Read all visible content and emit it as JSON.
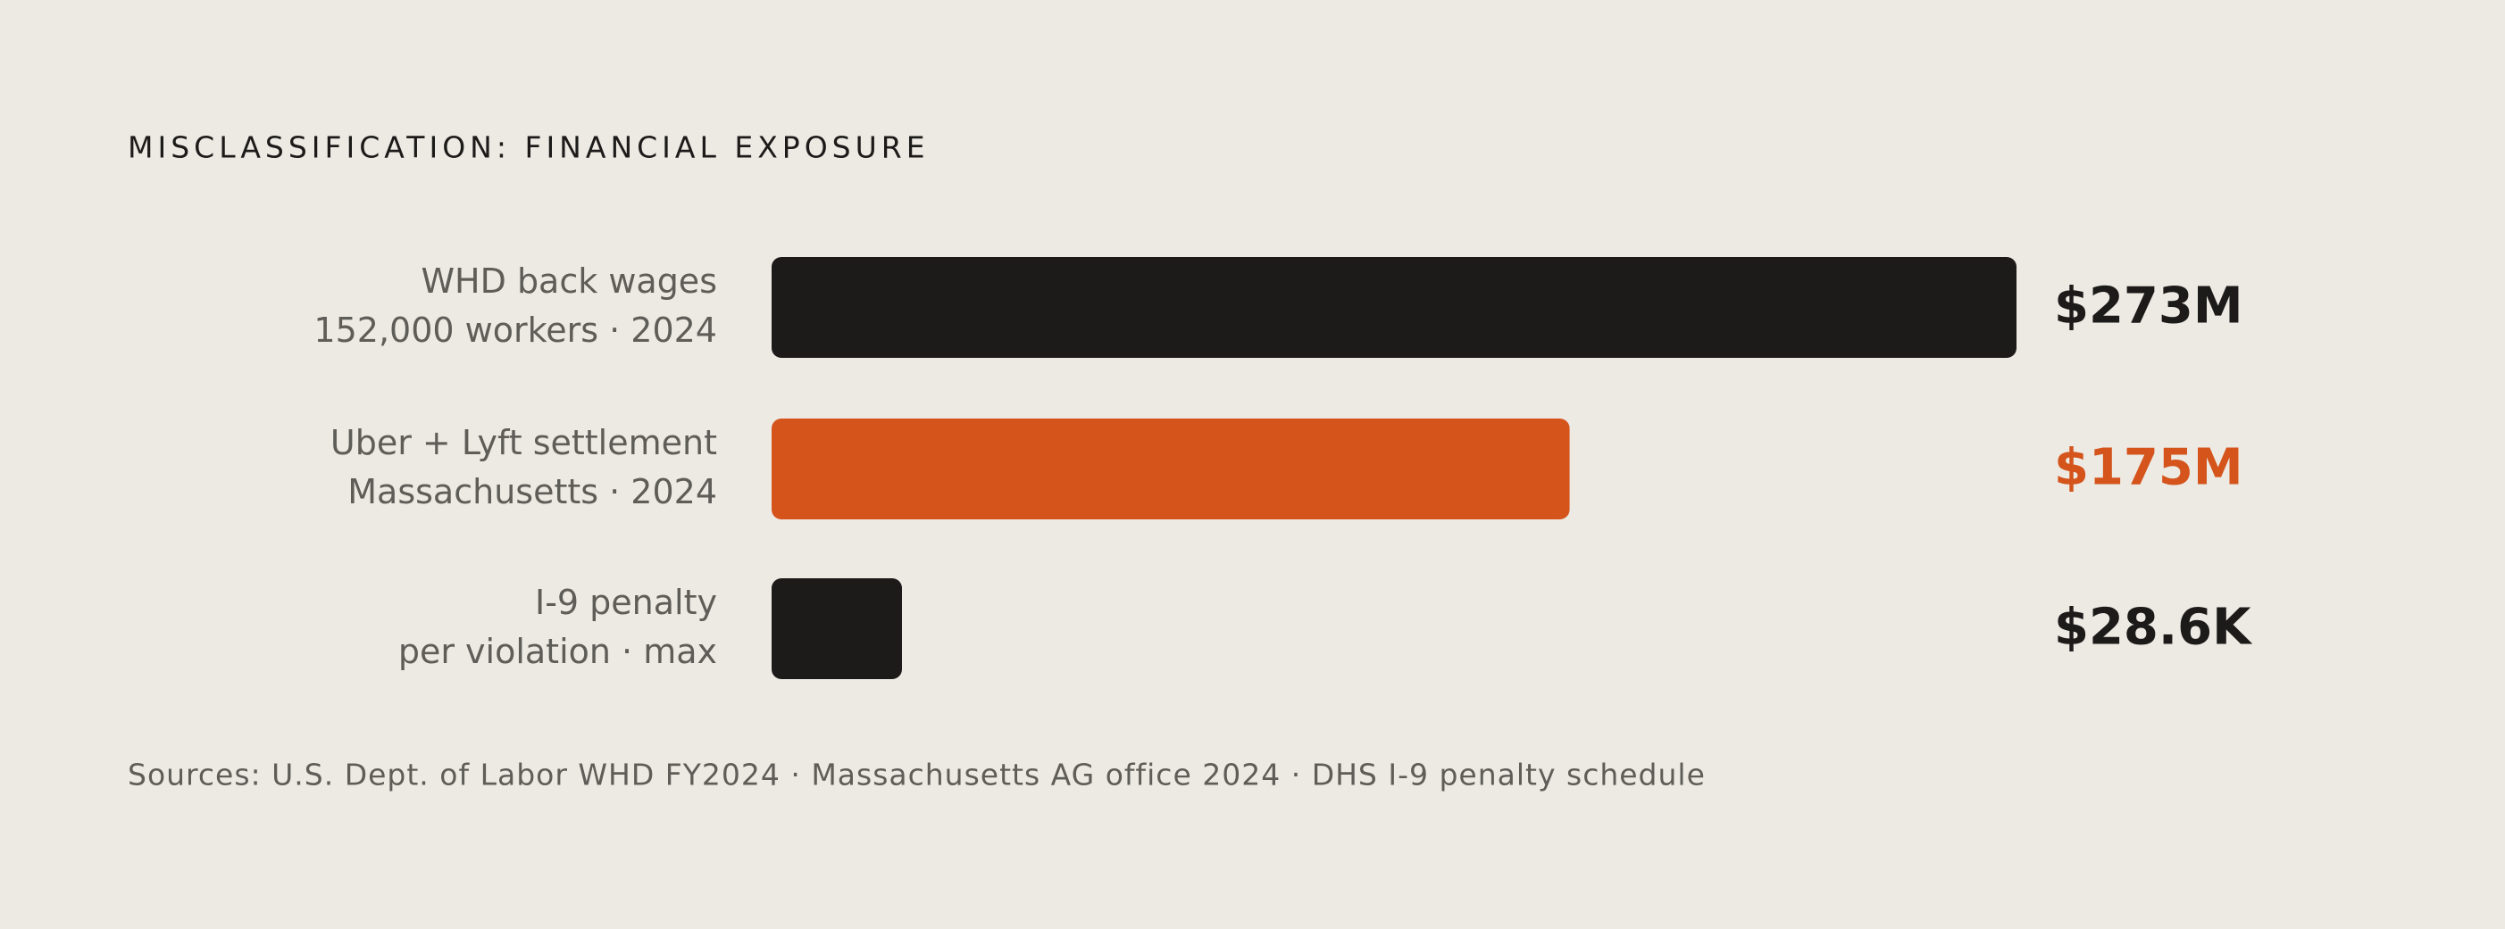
{
  "chart_data": {
    "type": "hbar",
    "title": "MISCLASSIFICATION: FINANCIAL EXPOSURE",
    "categories": [
      "WHD back wages",
      "Uber + Lyft settlement",
      "I-9 penalty"
    ],
    "category_notes": [
      "152,000 workers · 2024",
      "Massachusetts · 2024",
      "per violation · max"
    ],
    "values": [
      273000000,
      175000000,
      28600
    ],
    "value_labels": [
      "$273M",
      "$175M",
      "$28.6K"
    ],
    "colors": [
      "#1c1b19",
      "#d4541c",
      "#1c1b19"
    ],
    "xlim": [
      0,
      273000000
    ],
    "source": "Sources: U.S. Dept. of Labor WHD FY2024 · Massachusetts AG office 2024 · DHS I-9 penalty schedule"
  }
}
